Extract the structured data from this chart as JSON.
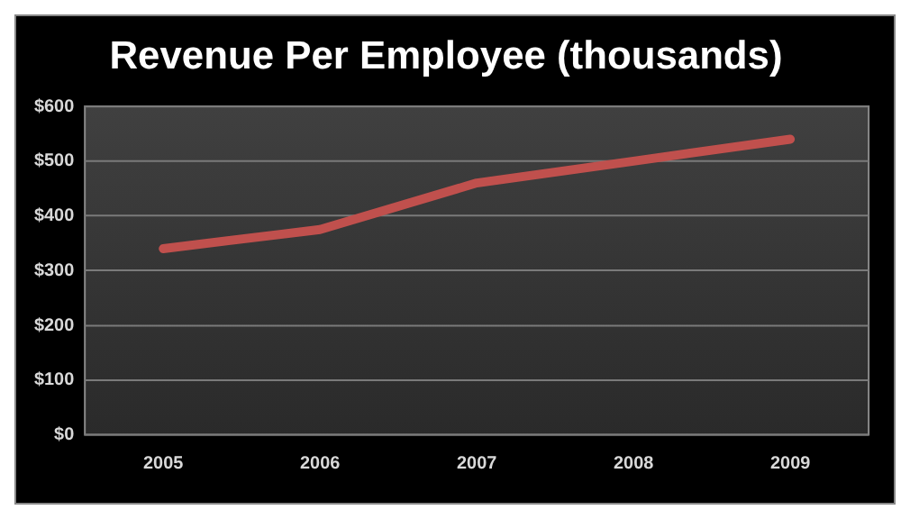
{
  "chart_data": {
    "type": "line",
    "title": "Revenue Per Employee (thousands)",
    "categories": [
      "2005",
      "2006",
      "2007",
      "2008",
      "2009"
    ],
    "series": [
      {
        "color": "#c0504d",
        "values": [
          340,
          375,
          460,
          500,
          540
        ]
      }
    ],
    "ylim": [
      0,
      600
    ],
    "yticks": [
      {
        "value": 0,
        "label": "$0"
      },
      {
        "value": 100,
        "label": "$100"
      },
      {
        "value": 200,
        "label": "$200"
      },
      {
        "value": 300,
        "label": "$300"
      },
      {
        "value": 400,
        "label": "$400"
      },
      {
        "value": 500,
        "label": "$500"
      },
      {
        "value": 600,
        "label": "$600"
      }
    ],
    "grid": "y",
    "legend": false,
    "marker": "none",
    "line_style": "solid"
  }
}
